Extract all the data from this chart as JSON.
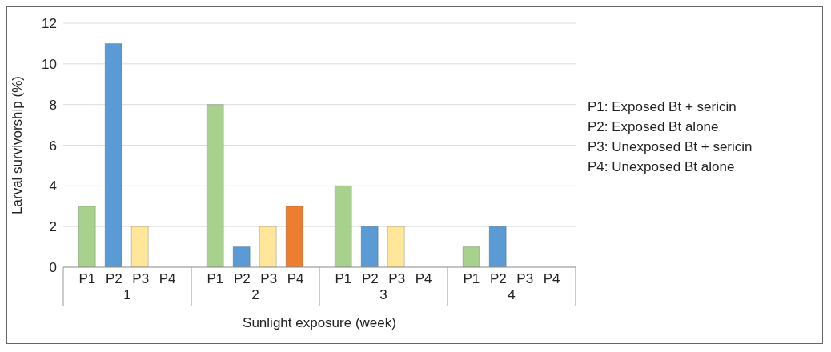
{
  "chart_data": {
    "type": "bar",
    "xlabel": "Sunlight exposure (week)",
    "ylabel": "Larval survivorship (%)",
    "categories": [
      "1",
      "2",
      "3",
      "4"
    ],
    "series": [
      {
        "name": "P1",
        "color": "#a9d18e",
        "values": [
          3,
          8,
          4,
          1
        ]
      },
      {
        "name": "P2",
        "color": "#5b9bd5",
        "values": [
          11,
          1,
          2,
          2
        ]
      },
      {
        "name": "P3",
        "color": "#ffe699",
        "values": [
          2,
          2,
          2,
          0
        ]
      },
      {
        "name": "P4",
        "color": "#ed7d31",
        "values": [
          0,
          3,
          0,
          0
        ]
      }
    ],
    "ylim": [
      0,
      12
    ],
    "yticks": [
      0,
      2,
      4,
      6,
      8,
      10,
      12
    ],
    "grid": "y",
    "annotations": [
      "P1: Exposed Bt + sericin",
      "P2: Exposed Bt alone",
      "P3: Unexposed Bt + sericin",
      "P4: Unexposed Bt alone"
    ]
  }
}
